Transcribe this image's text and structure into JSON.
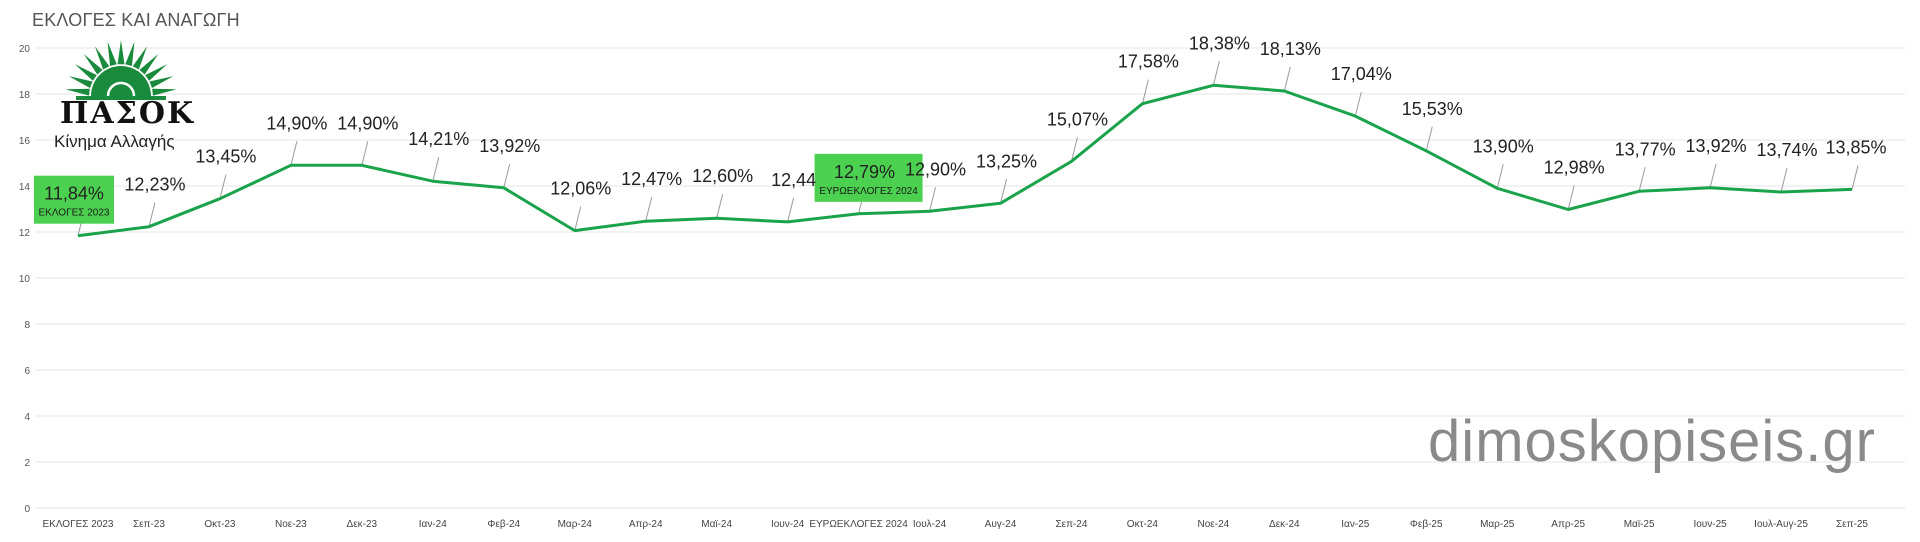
{
  "title": "ΕΚΛΟΓΕΣ ΚΑΙ ΑΝΑΓΩΓΗ",
  "watermark": "dimoskopiseis.gr",
  "logo": {
    "text": "ΠΑΣΟΚ",
    "subtitle": "Κίνημα Αλλαγής",
    "icon": "sun-icon",
    "color": "#1a8a3c"
  },
  "colors": {
    "line": "#1aa34a",
    "highlight_fill": "#4cd04f",
    "grid": "#e6e6e6",
    "label": "#222222"
  },
  "chart_data": {
    "type": "line",
    "title": "ΕΚΛΟΓΕΣ ΚΑΙ ΑΝΑΓΩΓΗ",
    "xlabel": "",
    "ylabel": "",
    "ylim": [
      0,
      20
    ],
    "yticks": [
      0,
      2,
      4,
      6,
      8,
      10,
      12,
      14,
      16,
      18,
      20
    ],
    "grid": true,
    "legend": "none",
    "categories": [
      "ΕΚΛΟΓΕΣ 2023",
      "Σεπ-23",
      "Οκτ-23",
      "Νοε-23",
      "Δεκ-23",
      "Ιαν-24",
      "Φεβ-24",
      "Μαρ-24",
      "Απρ-24",
      "Μαϊ-24",
      "Ιουν-24",
      "ΕΥΡΩΕΚΛΟΓΕΣ 2024",
      "Ιουλ-24",
      "Αυγ-24",
      "Σεπ-24",
      "Οκτ-24",
      "Νοε-24",
      "Δεκ-24",
      "Ιαν-25",
      "Φεβ-25",
      "Μαρ-25",
      "Απρ-25",
      "Μαϊ-25",
      "Ιουν-25",
      "Ιουλ-Αυγ-25",
      "Σεπ-25"
    ],
    "values": [
      11.84,
      12.23,
      13.45,
      14.9,
      14.9,
      14.21,
      13.92,
      12.06,
      12.47,
      12.6,
      12.44,
      12.79,
      12.9,
      13.25,
      15.07,
      17.58,
      18.38,
      18.13,
      17.04,
      15.53,
      13.9,
      12.98,
      13.77,
      13.92,
      13.74,
      13.85
    ],
    "data_labels": [
      "11,84%",
      "12,23%",
      "13,45%",
      "14,90%",
      "14,90%",
      "14,21%",
      "13,92%",
      "12,06%",
      "12,47%",
      "12,60%",
      "12,44",
      "12,79%",
      "12,90%",
      "13,25%",
      "15,07%",
      "17,58%",
      "18,38%",
      "18,13%",
      "17,04%",
      "15,53%",
      "13,90%",
      "12,98%",
      "13,77%",
      "13,92%",
      "13,74%",
      "13,85%"
    ],
    "highlights": [
      {
        "index": 0,
        "caption": "ΕΚΛΟΓΕΣ 2023"
      },
      {
        "index": 11,
        "caption": "ΕΥΡΩΕΚΛΟΓΕΣ 2024"
      }
    ]
  }
}
